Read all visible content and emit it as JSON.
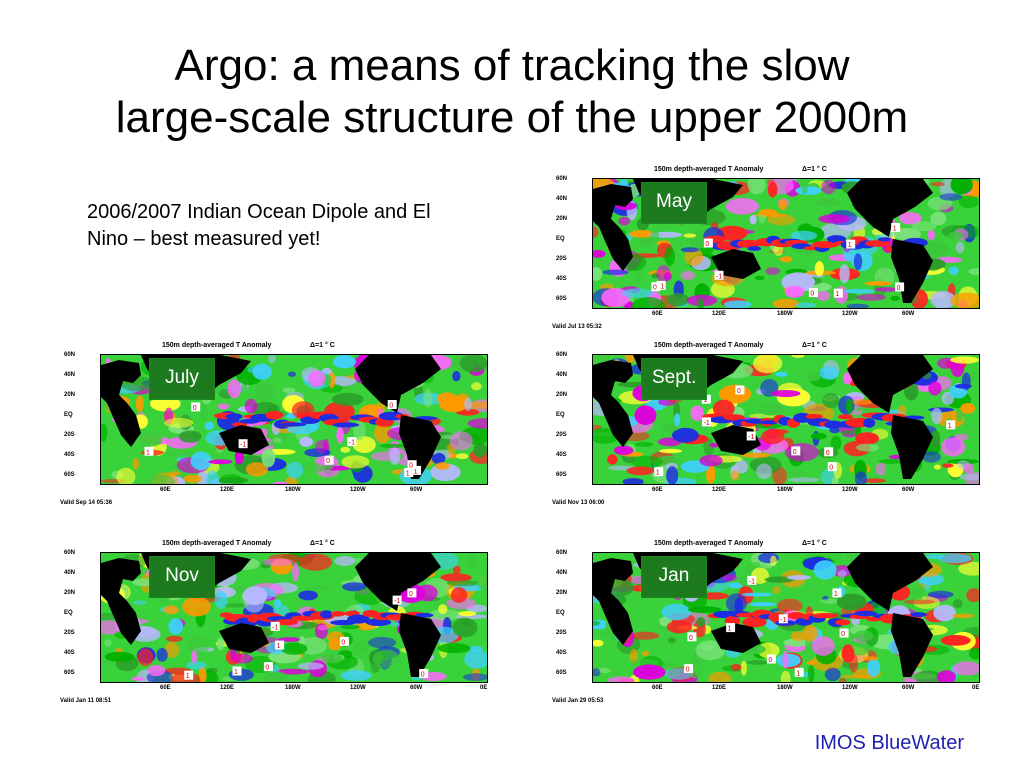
{
  "slide": {
    "title_line1": "Argo: a means of tracking the slow",
    "title_line2": "large-scale structure of the upper 2000m",
    "caption_line1": "2006/2007 Indian Ocean Dipole and El",
    "caption_line2": "Nino – best measured yet!",
    "footer": "IMOS BlueWater"
  },
  "maps": [
    {
      "month": "May",
      "header": "150m depth-averaged T Anomaly",
      "delta": "Δ=1 ° C",
      "lat_labels": [
        "60N",
        "40N",
        "20N",
        "EQ",
        "20S",
        "40S",
        "60S"
      ],
      "lon_labels": [
        "60E",
        "120E",
        "180W",
        "120W",
        "60W"
      ],
      "valid": "Valid Jul 13 05:32"
    },
    {
      "month": "July",
      "header": "150m depth-averaged T Anomaly",
      "delta": "Δ=1 ° C",
      "lat_labels": [
        "60N",
        "40N",
        "20N",
        "EQ",
        "20S",
        "40S",
        "60S"
      ],
      "lon_labels": [
        "60E",
        "120E",
        "180W",
        "120W",
        "60W"
      ],
      "valid": "Valid Sep 14 05:36"
    },
    {
      "month": "Sept.",
      "header": "150m depth-averaged T Anomaly",
      "delta": "Δ=1 ° C",
      "lat_labels": [
        "60N",
        "40N",
        "20N",
        "EQ",
        "20S",
        "40S",
        "60S"
      ],
      "lon_labels": [
        "60E",
        "120E",
        "180W",
        "120W",
        "60W"
      ],
      "valid": "Valid Nov 13 06:00"
    },
    {
      "month": "Nov",
      "header": "150m depth-averaged T Anomaly",
      "delta": "Δ=1 ° C",
      "lat_labels": [
        "60N",
        "40N",
        "20N",
        "EQ",
        "20S",
        "40S",
        "60S"
      ],
      "lon_labels": [
        "60E",
        "120E",
        "180W",
        "120W",
        "60W",
        "0E"
      ],
      "valid": "Valid Jan 11 08:51"
    },
    {
      "month": "Jan",
      "header": "150m depth-averaged T Anomaly",
      "delta": "Δ=1 ° C",
      "lat_labels": [
        "60N",
        "40N",
        "20N",
        "EQ",
        "20S",
        "40S",
        "60S"
      ],
      "lon_labels": [
        "60E",
        "120E",
        "180W",
        "120W",
        "60W",
        "0E"
      ],
      "valid": "Valid Jan 29 05:53"
    }
  ]
}
